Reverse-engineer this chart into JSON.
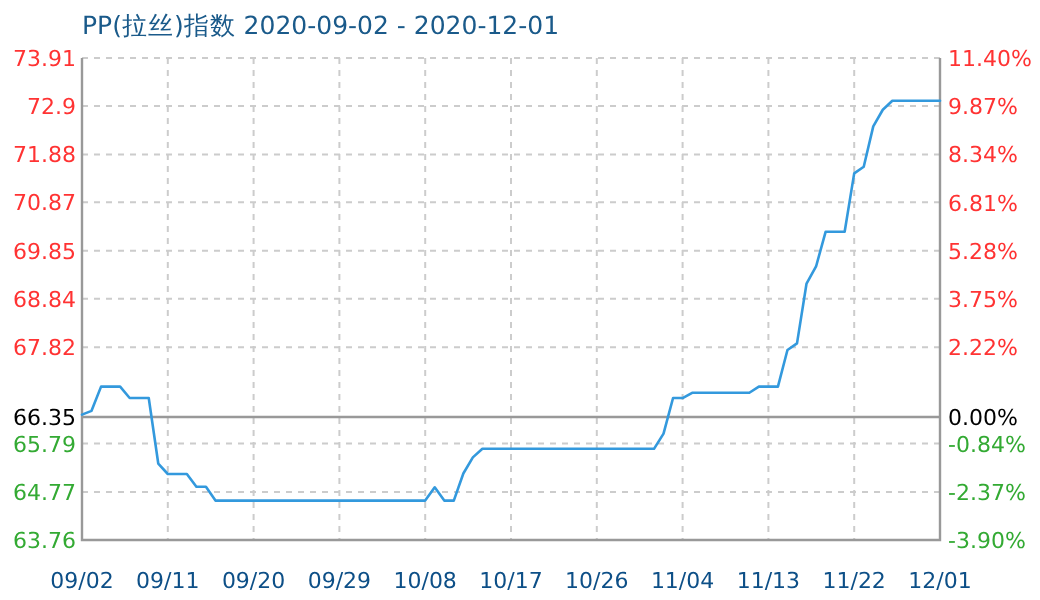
{
  "chart_data": {
    "type": "line",
    "title": "PP(拉丝)指数 2020-09-02 - 2020-12-01",
    "x": [
      "2020-09-02",
      "2020-09-03",
      "2020-09-04",
      "2020-09-06",
      "2020-09-07",
      "2020-09-09",
      "2020-09-10",
      "2020-09-11",
      "2020-09-13",
      "2020-09-14",
      "2020-09-15",
      "2020-09-16",
      "2020-10-08",
      "2020-10-09",
      "2020-10-10",
      "2020-10-11",
      "2020-10-12",
      "2020-10-13",
      "2020-10-14",
      "2020-11-01",
      "2020-11-02",
      "2020-11-03",
      "2020-11-04",
      "2020-11-05",
      "2020-11-11",
      "2020-11-12",
      "2020-11-14",
      "2020-11-15",
      "2020-11-16",
      "2020-11-17",
      "2020-11-18",
      "2020-11-19",
      "2020-11-21",
      "2020-11-22",
      "2020-11-23",
      "2020-11-24",
      "2020-11-25",
      "2020-11-26",
      "2020-12-01"
    ],
    "series": [
      {
        "color": "#3399dd",
        "values": [
          66.4,
          66.48,
          66.99,
          66.99,
          66.75,
          66.75,
          65.37,
          65.15,
          65.15,
          64.88,
          64.88,
          64.59,
          64.59,
          64.87,
          64.59,
          64.59,
          65.16,
          65.5,
          65.68,
          65.68,
          66.0,
          66.75,
          66.75,
          66.86,
          66.86,
          66.99,
          66.99,
          67.76,
          67.9,
          69.16,
          69.52,
          70.25,
          70.25,
          71.48,
          71.62,
          72.47,
          72.82,
          73.01,
          73.01
        ]
      }
    ],
    "xlim": [
      "2020-09-02",
      "2020-12-01"
    ],
    "xticks": [
      {
        "value": "2020-09-02",
        "label": "09/02"
      },
      {
        "value": "2020-09-11",
        "label": "09/11"
      },
      {
        "value": "2020-09-20",
        "label": "09/20"
      },
      {
        "value": "2020-09-29",
        "label": "09/29"
      },
      {
        "value": "2020-10-08",
        "label": "10/08"
      },
      {
        "value": "2020-10-17",
        "label": "10/17"
      },
      {
        "value": "2020-10-26",
        "label": "10/26"
      },
      {
        "value": "2020-11-04",
        "label": "11/04"
      },
      {
        "value": "2020-11-13",
        "label": "11/13"
      },
      {
        "value": "2020-11-22",
        "label": "11/22"
      },
      {
        "value": "2020-12-01",
        "label": "12/01"
      }
    ],
    "ylim": [
      63.76,
      73.91
    ],
    "yticks": [
      63.76,
      64.77,
      65.79,
      66.35,
      67.82,
      68.84,
      69.85,
      70.87,
      71.88,
      72.9,
      73.91
    ],
    "y2lim": [
      -3.9,
      11.4
    ],
    "y2ticks": [
      {
        "value": -3.9,
        "label": "-3.90%"
      },
      {
        "value": -2.37,
        "label": "-2.37%"
      },
      {
        "value": -0.84,
        "label": "-0.84%"
      },
      {
        "value": 0,
        "label": "0.00%"
      },
      {
        "value": 2.22,
        "label": "2.22%"
      },
      {
        "value": 3.75,
        "label": "3.75%"
      },
      {
        "value": 5.28,
        "label": "5.28%"
      },
      {
        "value": 6.81,
        "label": "6.81%"
      },
      {
        "value": 8.34,
        "label": "8.34%"
      },
      {
        "value": 9.87,
        "label": "9.87%"
      },
      {
        "value": 11.4,
        "label": "11.40%"
      }
    ],
    "ref_lines": [
      {
        "axis": "y",
        "value": 66.35,
        "color": "#999999"
      }
    ],
    "grid": true
  }
}
